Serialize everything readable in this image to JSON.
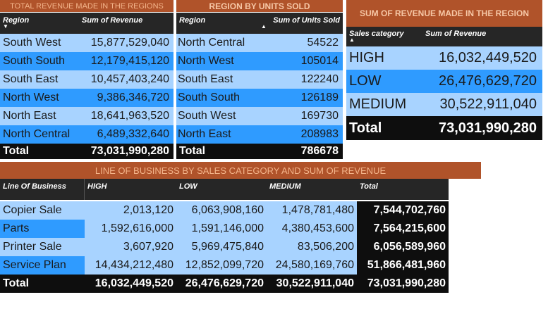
{
  "banners": {
    "regions": "TOTAL REVENUE MADE IN THE REGIONS",
    "units": "REGION BY UNITS SOLD",
    "sales_category": "SUM OF REVENUE MADE IN THE REGION",
    "line_of_business": "LINE OF BUSINESS BY SALES CATEGORY AND SUM OF REVENUE"
  },
  "revenue_table": {
    "headers": [
      "Region",
      "Sum of Revenue"
    ],
    "rows": [
      {
        "region": "South West",
        "value": "15,877,529,040"
      },
      {
        "region": "South South",
        "value": "12,179,415,120"
      },
      {
        "region": "South East",
        "value": "10,457,403,240"
      },
      {
        "region": "North West",
        "value": "9,386,346,720"
      },
      {
        "region": "North East",
        "value": "18,641,963,520"
      },
      {
        "region": "North Central",
        "value": "6,489,332,640"
      }
    ],
    "total_label": "Total",
    "total_value": "73,031,990,280"
  },
  "units_table": {
    "headers": [
      "Region",
      "Sum of Units Sold"
    ],
    "rows": [
      {
        "region": "North Central",
        "value": "54522"
      },
      {
        "region": "North West",
        "value": "105014"
      },
      {
        "region": "South East",
        "value": "122240"
      },
      {
        "region": "South South",
        "value": "126189"
      },
      {
        "region": "South West",
        "value": "169730"
      },
      {
        "region": "North East",
        "value": "208983"
      }
    ],
    "total_label": "Total",
    "total_value": "786678"
  },
  "category_table": {
    "headers": [
      "Sales category",
      "Sum of Revenue"
    ],
    "rows": [
      {
        "category": "HIGH",
        "value": "16,032,449,520"
      },
      {
        "category": "LOW",
        "value": "26,476,629,720"
      },
      {
        "category": "MEDIUM",
        "value": "30,522,911,040"
      }
    ],
    "total_label": "Total",
    "total_value": "73,031,990,280"
  },
  "business_table": {
    "headers": [
      "Line Of Business",
      "HIGH",
      "LOW",
      "MEDIUM",
      "Total"
    ],
    "rows": [
      {
        "name": "Copier Sale",
        "high": "2,013,120",
        "low": "6,063,908,160",
        "medium": "1,478,781,480",
        "total": "7,544,702,760"
      },
      {
        "name": "Parts",
        "high": "1,592,616,000",
        "low": "1,591,146,000",
        "medium": "4,380,453,600",
        "total": "7,564,215,600"
      },
      {
        "name": "Printer Sale",
        "high": "3,607,920",
        "low": "5,969,475,840",
        "medium": "83,506,200",
        "total": "6,056,589,960"
      },
      {
        "name": "Service Plan",
        "high": "14,434,212,480",
        "low": "12,852,099,720",
        "medium": "24,580,169,760",
        "total": "51,866,481,960"
      }
    ],
    "total": {
      "name": "Total",
      "high": "16,032,449,520",
      "low": "26,476,629,720",
      "medium": "30,522,911,040",
      "total": "73,031,990,280"
    }
  },
  "icons": {
    "sort_desc": "triangle-down",
    "sort_asc": "triangle-up"
  },
  "colors": {
    "banner": "#b0532a",
    "header": "#262626",
    "row_light": "#a8d3ff",
    "row_mid": "#2f9bff",
    "total": "#0e0e0e"
  }
}
